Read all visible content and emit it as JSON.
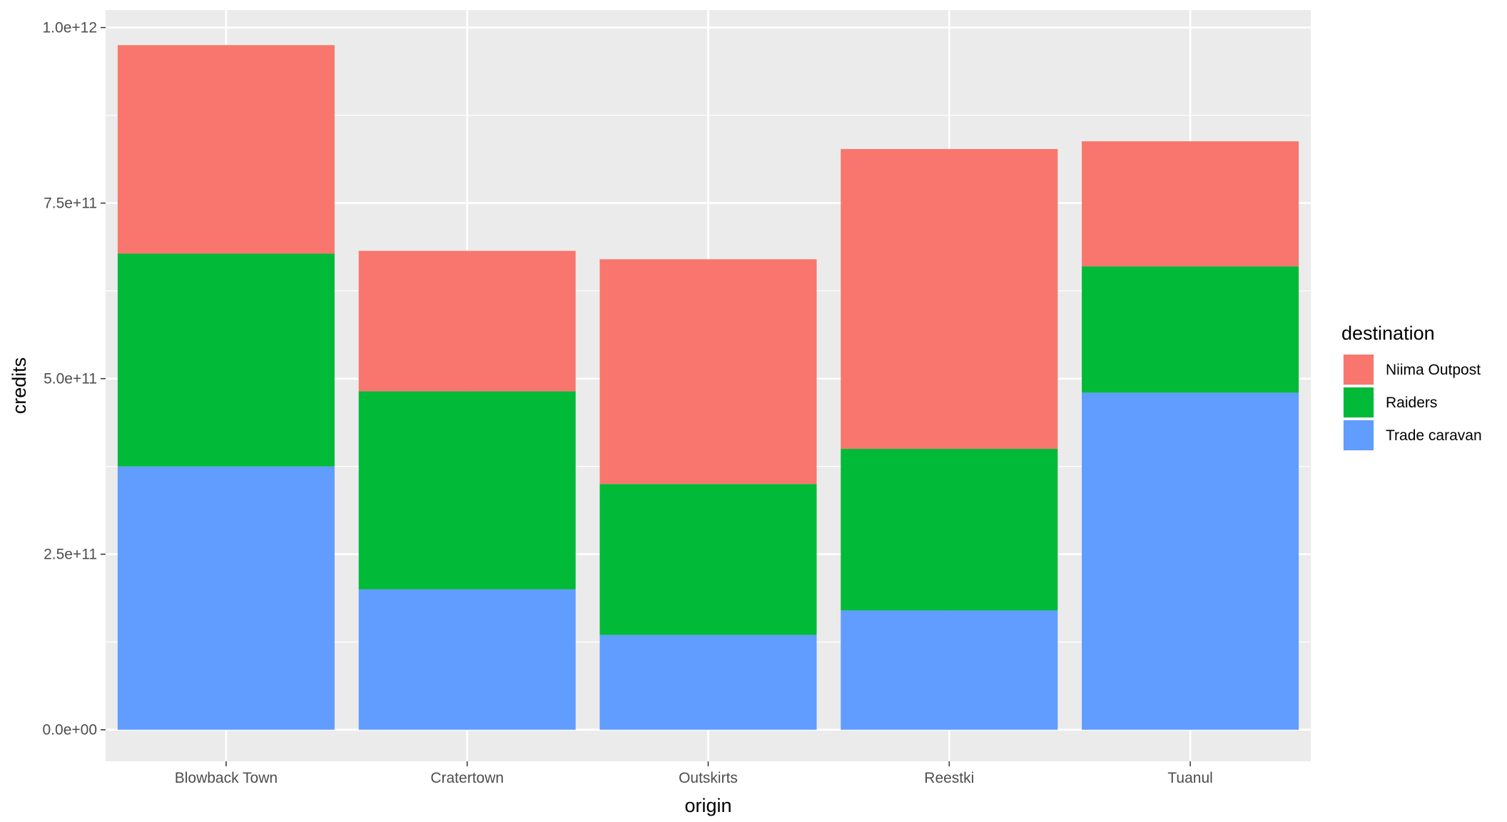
{
  "chart_data": {
    "type": "bar",
    "stacked": true,
    "categories": [
      "Blowback Town",
      "Cratertown",
      "Outskirts",
      "Reestki",
      "Tuanul"
    ],
    "series": [
      {
        "name": "Trade caravan",
        "color": "#619CFF",
        "values": [
          375000000000.0,
          200000000000.0,
          135000000000.0,
          170000000000.0,
          480000000000.0
        ]
      },
      {
        "name": "Raiders",
        "color": "#00BA38",
        "values": [
          303000000000.0,
          282000000000.0,
          215000000000.0,
          230000000000.0,
          180000000000.0
        ]
      },
      {
        "name": "Niima Outpost",
        "color": "#F8766D",
        "values": [
          297000000000.0,
          200000000000.0,
          320000000000.0,
          427000000000.0,
          178000000000.0
        ]
      }
    ],
    "xlabel": "origin",
    "ylabel": "credits",
    "ylim": [
      -45000000000.0,
      1025000000000.0
    ],
    "yticks": [
      0,
      250000000000.0,
      500000000000.0,
      750000000000.0,
      1000000000000.0
    ],
    "ytick_labels": [
      "0.0e+00",
      "2.5e+11",
      "5.0e+11",
      "7.5e+11",
      "1.0e+12"
    ],
    "legend": {
      "title": "destination",
      "position": "right",
      "items": [
        "Niima Outpost",
        "Raiders",
        "Trade caravan"
      ]
    },
    "panel_background": "#EBEBEB",
    "grid_color": "#FFFFFF",
    "grid": true
  }
}
